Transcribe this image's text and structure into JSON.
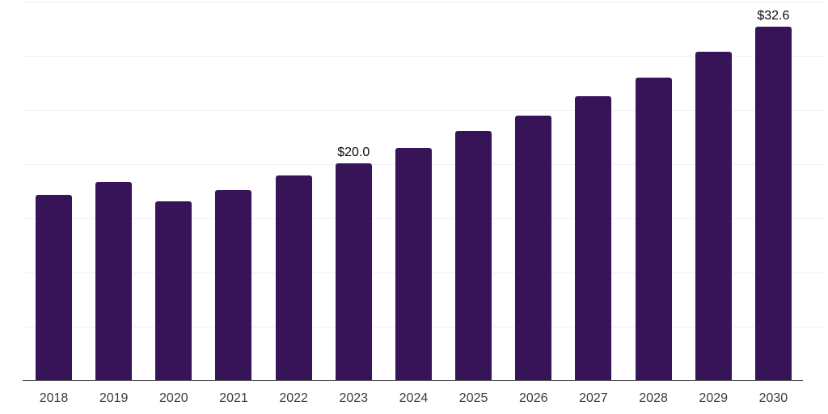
{
  "chart_data": {
    "type": "bar",
    "title": "",
    "xlabel": "",
    "ylabel": "",
    "categories": [
      "2018",
      "2019",
      "2020",
      "2021",
      "2022",
      "2023",
      "2024",
      "2025",
      "2026",
      "2027",
      "2028",
      "2029",
      "2030"
    ],
    "values": [
      17.1,
      18.3,
      16.5,
      17.5,
      18.9,
      20.0,
      21.4,
      23.0,
      24.4,
      26.2,
      27.9,
      30.3,
      32.6
    ],
    "data_labels": {
      "2023": "$20.0",
      "2030": "$32.6"
    },
    "ylim": [
      0,
      35
    ],
    "grid_step": 5,
    "grid": true,
    "legend": false,
    "y_tick_labels_visible": false,
    "bar_color": "#371357",
    "axis_color": "#444444",
    "gridline_color": "#f1f1f1",
    "tick_label_color": "#3b3b3b",
    "data_label_color": "#0a0a0a",
    "background_color": "#ffffff"
  }
}
